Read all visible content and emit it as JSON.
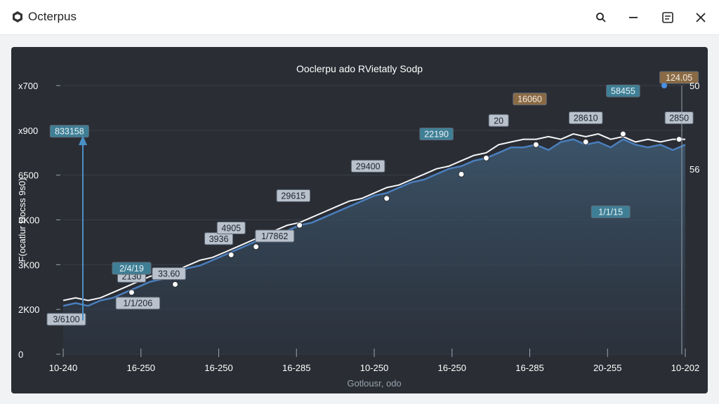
{
  "app": {
    "title": "Octerpus"
  },
  "titlebar": {
    "search_icon": "search-icon",
    "minimize_icon": "minimize-icon",
    "menu_icon": "menu-icon",
    "close_icon": "close-icon"
  },
  "colors": {
    "panel": "#2a2d34",
    "line_white": "#f4f6f8",
    "line_blue": "#4a7fbd",
    "area": "#3a5266",
    "accent_brown": "#8a6a45",
    "accent_teal": "#3f7f95"
  },
  "chart_data": {
    "type": "line",
    "title": "Ooclerpu ado RVietatly Sodp",
    "xlabel": "Gotlousr, odo",
    "ylabel": "F(ocatlur Docss 9s0)",
    "y_tick_labels": [
      "x700",
      "x900",
      "6500",
      "3K00",
      "3K00",
      "2K00",
      "0"
    ],
    "x_tick_labels": [
      "10-240",
      "16-250",
      "16-250",
      "16-285",
      "10-250",
      "16-250",
      "16-285",
      "20-255",
      "10-202"
    ],
    "right_axis_labels": [
      "50",
      "56"
    ],
    "xlim": [
      0,
      100
    ],
    "ylim": [
      0,
      100
    ],
    "series": [
      {
        "x": [
          0,
          2,
          4,
          6,
          8,
          10,
          12,
          14,
          16,
          18,
          20,
          22,
          24,
          26,
          28,
          30,
          32,
          34,
          36,
          38,
          40,
          42,
          44,
          46,
          48,
          50,
          52,
          54,
          56,
          58,
          60,
          62,
          64,
          66,
          68,
          70,
          72,
          74,
          76,
          78,
          80,
          82,
          84,
          86,
          88,
          90,
          92,
          94,
          96,
          98,
          100
        ],
        "values": [
          20,
          21,
          20,
          21,
          23,
          25,
          27,
          29,
          30,
          31,
          33,
          35,
          36,
          38,
          40,
          42,
          44,
          46,
          48,
          49,
          51,
          53,
          55,
          57,
          58,
          60,
          62,
          63,
          65,
          67,
          69,
          70,
          72,
          74,
          75,
          78,
          79,
          80,
          80,
          81,
          80,
          82,
          81,
          82,
          80,
          81,
          79,
          80,
          79,
          80,
          80
        ]
      },
      {
        "x": [
          0,
          2,
          4,
          6,
          8,
          10,
          12,
          14,
          16,
          18,
          20,
          22,
          24,
          26,
          28,
          30,
          32,
          34,
          36,
          38,
          40,
          42,
          44,
          46,
          48,
          50,
          52,
          54,
          56,
          58,
          60,
          62,
          64,
          66,
          68,
          70,
          72,
          74,
          76,
          78,
          80,
          82,
          84,
          86,
          88,
          90,
          92,
          94,
          96,
          98,
          100
        ],
        "values": [
          18,
          19,
          18,
          20,
          21,
          23,
          25,
          27,
          28,
          30,
          32,
          33,
          35,
          37,
          39,
          41,
          43,
          44,
          46,
          48,
          49,
          51,
          53,
          55,
          57,
          59,
          60,
          62,
          64,
          65,
          67,
          69,
          70,
          72,
          73,
          75,
          77,
          77,
          78,
          76,
          79,
          80,
          78,
          79,
          77,
          80,
          78,
          77,
          78,
          76,
          78
        ]
      }
    ],
    "annotations": [
      {
        "x": 1,
        "y": 83,
        "label": "833158",
        "color": "teal"
      },
      {
        "x": 0.5,
        "y": 13,
        "label": "3/6100",
        "color": "gray"
      },
      {
        "x": 11,
        "y": 29,
        "label": "2130",
        "color": "gray"
      },
      {
        "x": 11,
        "y": 32,
        "label": "2/4/19",
        "color": "teal"
      },
      {
        "x": 17,
        "y": 30,
        "label": "33.60",
        "color": "gray"
      },
      {
        "x": 12,
        "y": 19,
        "label": "1/1/206",
        "color": "gray"
      },
      {
        "x": 25,
        "y": 43,
        "label": "3936",
        "color": "gray"
      },
      {
        "x": 27,
        "y": 47,
        "label": "4905",
        "color": "gray"
      },
      {
        "x": 34,
        "y": 44,
        "label": "1/7862",
        "color": "gray"
      },
      {
        "x": 37,
        "y": 59,
        "label": "29615",
        "color": "gray"
      },
      {
        "x": 49,
        "y": 70,
        "label": "29400",
        "color": "gray"
      },
      {
        "x": 60,
        "y": 82,
        "label": "22190",
        "color": "teal"
      },
      {
        "x": 70,
        "y": 87,
        "label": "20",
        "color": "gray"
      },
      {
        "x": 75,
        "y": 95,
        "label": "16060",
        "color": "brown"
      },
      {
        "x": 84,
        "y": 88,
        "label": "28610",
        "color": "gray"
      },
      {
        "x": 90,
        "y": 98,
        "label": "58455",
        "color": "teal"
      },
      {
        "x": 99,
        "y": 88,
        "label": "2850",
        "color": "gray"
      },
      {
        "x": 99,
        "y": 103,
        "label": "124.05",
        "color": "brown"
      },
      {
        "x": 88,
        "y": 53,
        "label": "1/1/15",
        "color": "teal"
      }
    ]
  }
}
